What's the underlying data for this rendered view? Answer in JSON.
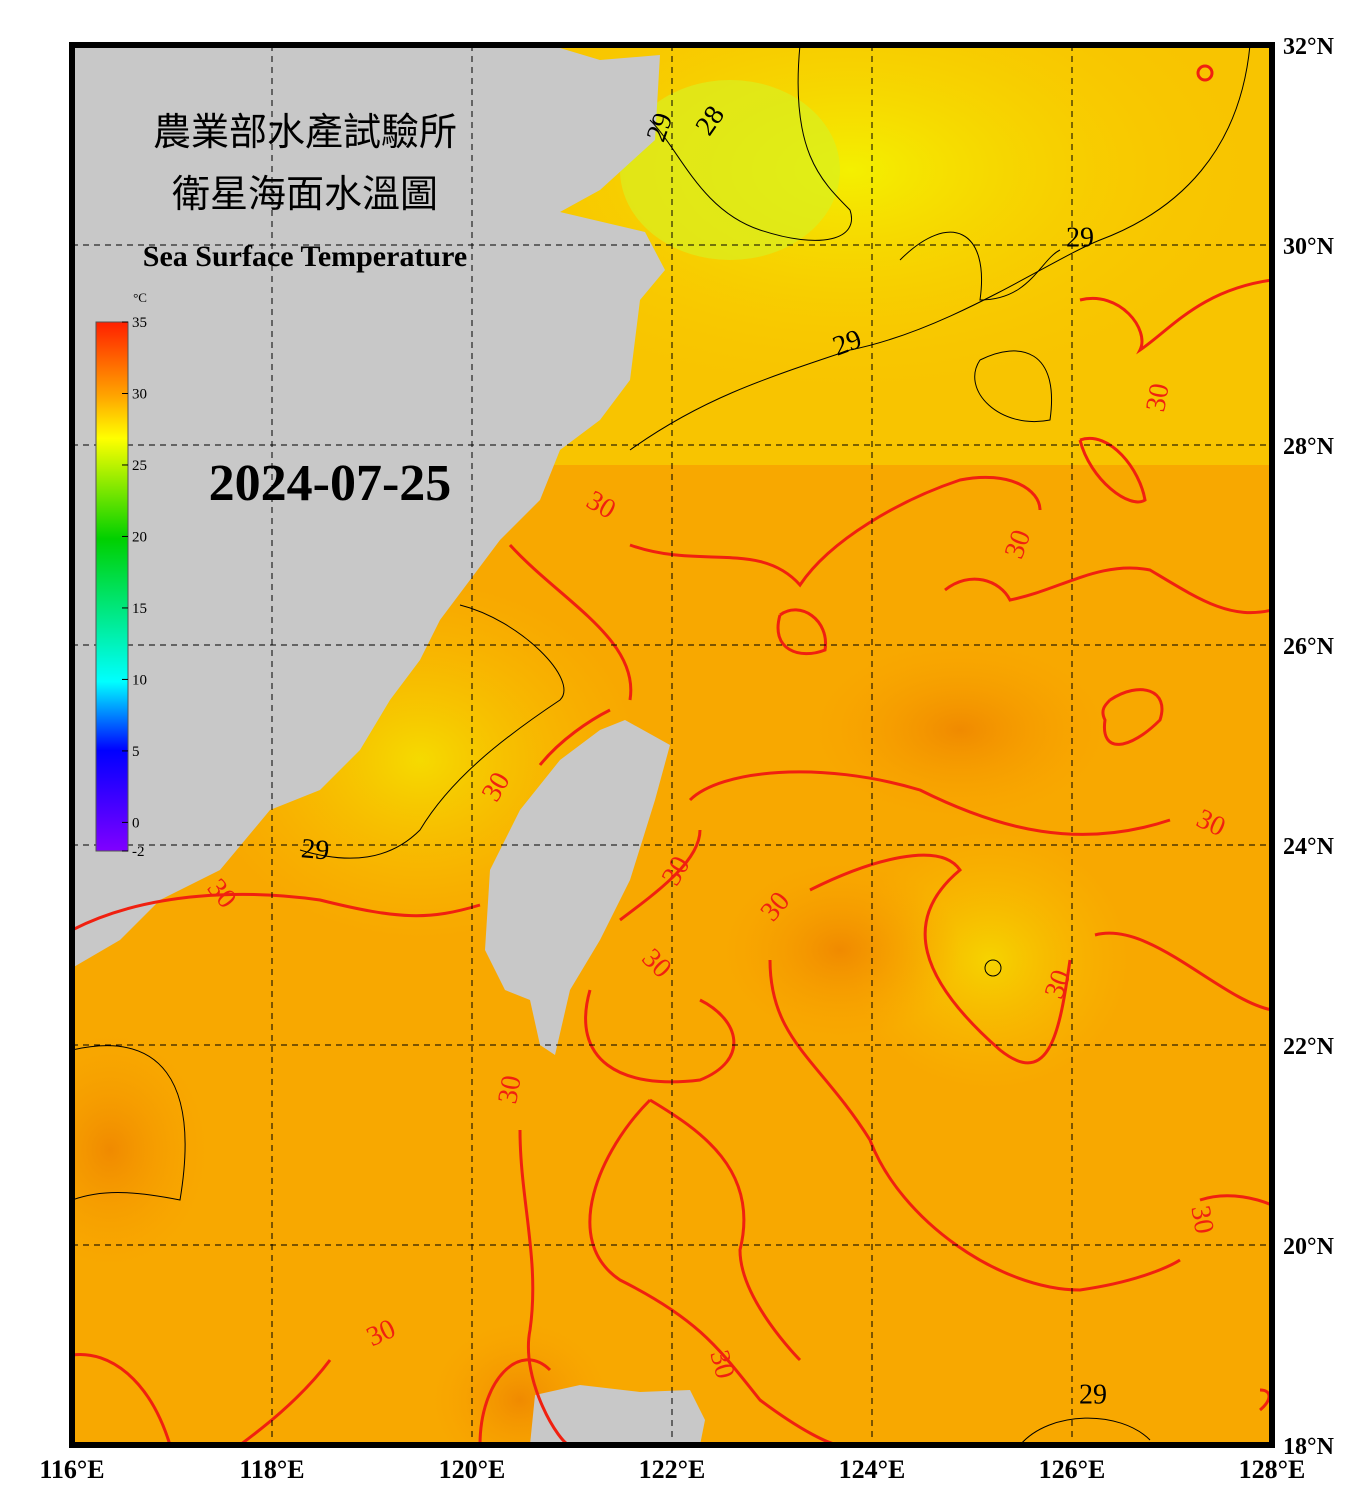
{
  "header": {
    "title_zh": "農業部水產試驗所",
    "subtitle_zh": "衛星海面水溫圖",
    "title_en": "Sea Surface Temperature"
  },
  "date": "2024-07-25",
  "map": {
    "lon_range": [
      116,
      128
    ],
    "lat_range": [
      18,
      32
    ],
    "lon_ticks": [
      {
        "value": 116,
        "label": "116°E"
      },
      {
        "value": 118,
        "label": "118°E"
      },
      {
        "value": 120,
        "label": "120°E"
      },
      {
        "value": 122,
        "label": "122°E"
      },
      {
        "value": 124,
        "label": "124°E"
      },
      {
        "value": 126,
        "label": "126°E"
      },
      {
        "value": 128,
        "label": "128°E"
      }
    ],
    "lat_ticks": [
      {
        "value": 18,
        "label": "18°N"
      },
      {
        "value": 20,
        "label": "20°N"
      },
      {
        "value": 22,
        "label": "22°N"
      },
      {
        "value": 24,
        "label": "24°N"
      },
      {
        "value": 26,
        "label": "26°N"
      },
      {
        "value": 28,
        "label": "28°N"
      },
      {
        "value": 30,
        "label": "30°N"
      },
      {
        "value": 32,
        "label": "32°N"
      }
    ],
    "grid": true
  },
  "colorbar": {
    "unit": "°C",
    "range": [
      -2,
      35
    ],
    "ticks": [
      -2,
      0,
      5,
      10,
      15,
      20,
      25,
      30,
      35
    ]
  },
  "contour_labels": [
    "29",
    "28",
    "29",
    "29",
    "30",
    "30",
    "30",
    "30",
    "30",
    "29",
    "30",
    "30",
    "30",
    "30",
    "30",
    "30",
    "30",
    "30",
    "30",
    "29"
  ]
}
